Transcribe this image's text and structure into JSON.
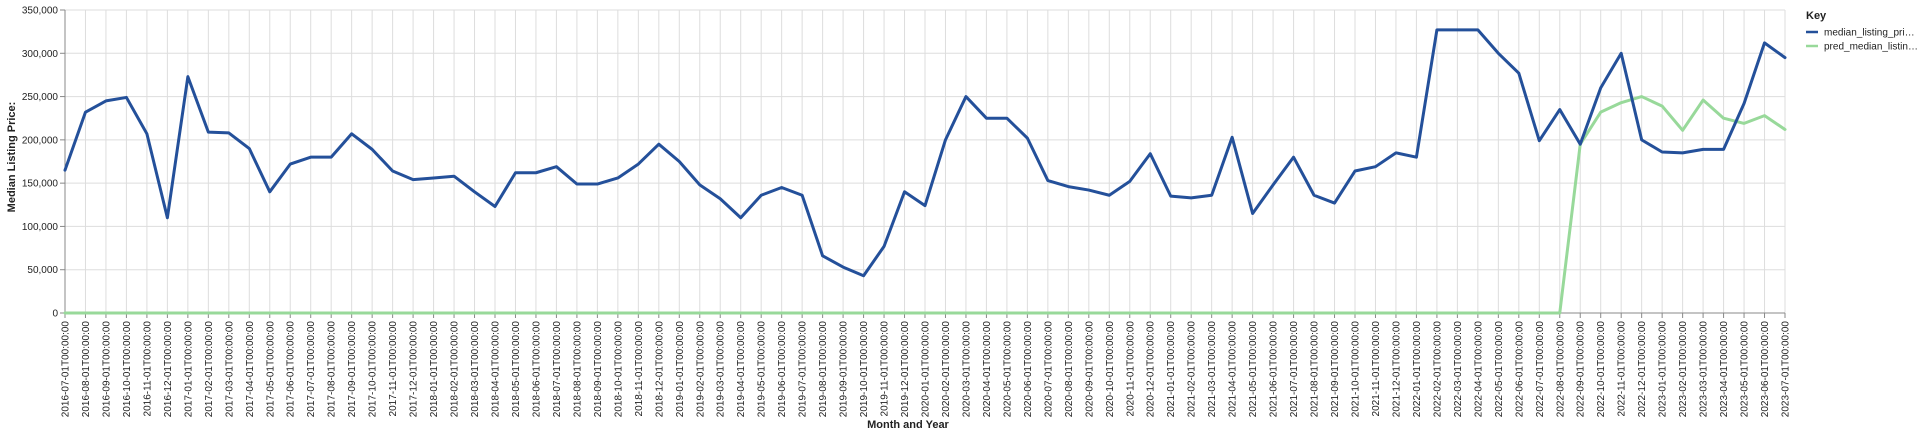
{
  "chart_data": {
    "type": "line",
    "xlabel": "Month and Year",
    "ylabel": "Median Listing Price:",
    "ylim": [
      0,
      350000
    ],
    "yticks": [
      "0",
      "50,000",
      "100,000",
      "150,000",
      "200,000",
      "250,000",
      "300,000",
      "350,000"
    ],
    "grid": true,
    "legend_position": "top-right",
    "legend_title": "Key",
    "x": [
      "2016-07-01T00:00:00",
      "2016-08-01T00:00:00",
      "2016-09-01T00:00:00",
      "2016-10-01T00:00:00",
      "2016-11-01T00:00:00",
      "2016-12-01T00:00:00",
      "2017-01-01T00:00:00",
      "2017-02-01T00:00:00",
      "2017-03-01T00:00:00",
      "2017-04-01T00:00:00",
      "2017-05-01T00:00:00",
      "2017-06-01T00:00:00",
      "2017-07-01T00:00:00",
      "2017-08-01T00:00:00",
      "2017-09-01T00:00:00",
      "2017-10-01T00:00:00",
      "2017-11-01T00:00:00",
      "2017-12-01T00:00:00",
      "2018-01-01T00:00:00",
      "2018-02-01T00:00:00",
      "2018-03-01T00:00:00",
      "2018-04-01T00:00:00",
      "2018-05-01T00:00:00",
      "2018-06-01T00:00:00",
      "2018-07-01T00:00:00",
      "2018-08-01T00:00:00",
      "2018-09-01T00:00:00",
      "2018-10-01T00:00:00",
      "2018-11-01T00:00:00",
      "2018-12-01T00:00:00",
      "2019-01-01T00:00:00",
      "2019-02-01T00:00:00",
      "2019-03-01T00:00:00",
      "2019-04-01T00:00:00",
      "2019-05-01T00:00:00",
      "2019-06-01T00:00:00",
      "2019-07-01T00:00:00",
      "2019-08-01T00:00:00",
      "2019-09-01T00:00:00",
      "2019-10-01T00:00:00",
      "2019-11-01T00:00:00",
      "2019-12-01T00:00:00",
      "2020-01-01T00:00:00",
      "2020-02-01T00:00:00",
      "2020-03-01T00:00:00",
      "2020-04-01T00:00:00",
      "2020-05-01T00:00:00",
      "2020-06-01T00:00:00",
      "2020-07-01T00:00:00",
      "2020-08-01T00:00:00",
      "2020-09-01T00:00:00",
      "2020-10-01T00:00:00",
      "2020-11-01T00:00:00",
      "2020-12-01T00:00:00",
      "2021-01-01T00:00:00",
      "2021-02-01T00:00:00",
      "2021-03-01T00:00:00",
      "2021-04-01T00:00:00",
      "2021-05-01T00:00:00",
      "2021-06-01T00:00:00",
      "2021-07-01T00:00:00",
      "2021-08-01T00:00:00",
      "2021-09-01T00:00:00",
      "2021-10-01T00:00:00",
      "2021-11-01T00:00:00",
      "2021-12-01T00:00:00",
      "2022-01-01T00:00:00",
      "2022-02-01T00:00:00",
      "2022-03-01T00:00:00",
      "2022-04-01T00:00:00",
      "2022-05-01T00:00:00",
      "2022-06-01T00:00:00",
      "2022-07-01T00:00:00",
      "2022-08-01T00:00:00",
      "2022-09-01T00:00:00",
      "2022-10-01T00:00:00",
      "2022-11-01T00:00:00",
      "2022-12-01T00:00:00",
      "2023-01-01T00:00:00",
      "2023-02-01T00:00:00",
      "2023-03-01T00:00:00",
      "2023-04-01T00:00:00",
      "2023-05-01T00:00:00",
      "2023-06-01T00:00:00",
      "2023-07-01T00:00:00"
    ],
    "series": [
      {
        "name": "median_listing_pri…",
        "color": "#24509a",
        "values": [
          165000,
          232000,
          245000,
          249000,
          207000,
          110000,
          273000,
          209000,
          208000,
          190000,
          140000,
          172000,
          180000,
          180000,
          207000,
          189000,
          164000,
          154000,
          156000,
          158000,
          140000,
          123000,
          162000,
          162000,
          169000,
          149000,
          149000,
          156000,
          172000,
          195000,
          175000,
          148000,
          132000,
          110000,
          136000,
          145000,
          136000,
          66000,
          53000,
          43000,
          77000,
          140000,
          124000,
          200000,
          250000,
          225000,
          225000,
          202000,
          153000,
          146000,
          142000,
          136000,
          152000,
          184000,
          135000,
          133000,
          136000,
          203000,
          115000,
          148000,
          180000,
          136000,
          127000,
          164000,
          169000,
          185000,
          180000,
          327000,
          327000,
          327000,
          300000,
          277000,
          199000,
          235000,
          195000,
          260000,
          300000,
          200000,
          186000,
          185000,
          189000,
          189000,
          242000,
          312000,
          295000
        ]
      },
      {
        "name": "pred_median_listin…",
        "color": "#98d99a",
        "values": [
          0,
          0,
          0,
          0,
          0,
          0,
          0,
          0,
          0,
          0,
          0,
          0,
          0,
          0,
          0,
          0,
          0,
          0,
          0,
          0,
          0,
          0,
          0,
          0,
          0,
          0,
          0,
          0,
          0,
          0,
          0,
          0,
          0,
          0,
          0,
          0,
          0,
          0,
          0,
          0,
          0,
          0,
          0,
          0,
          0,
          0,
          0,
          0,
          0,
          0,
          0,
          0,
          0,
          0,
          0,
          0,
          0,
          0,
          0,
          0,
          0,
          0,
          0,
          0,
          0,
          0,
          0,
          0,
          0,
          0,
          0,
          0,
          0,
          0,
          195000,
          232000,
          243000,
          250000,
          239000,
          211000,
          246000,
          225000,
          219000,
          228000,
          212000
        ]
      }
    ]
  }
}
